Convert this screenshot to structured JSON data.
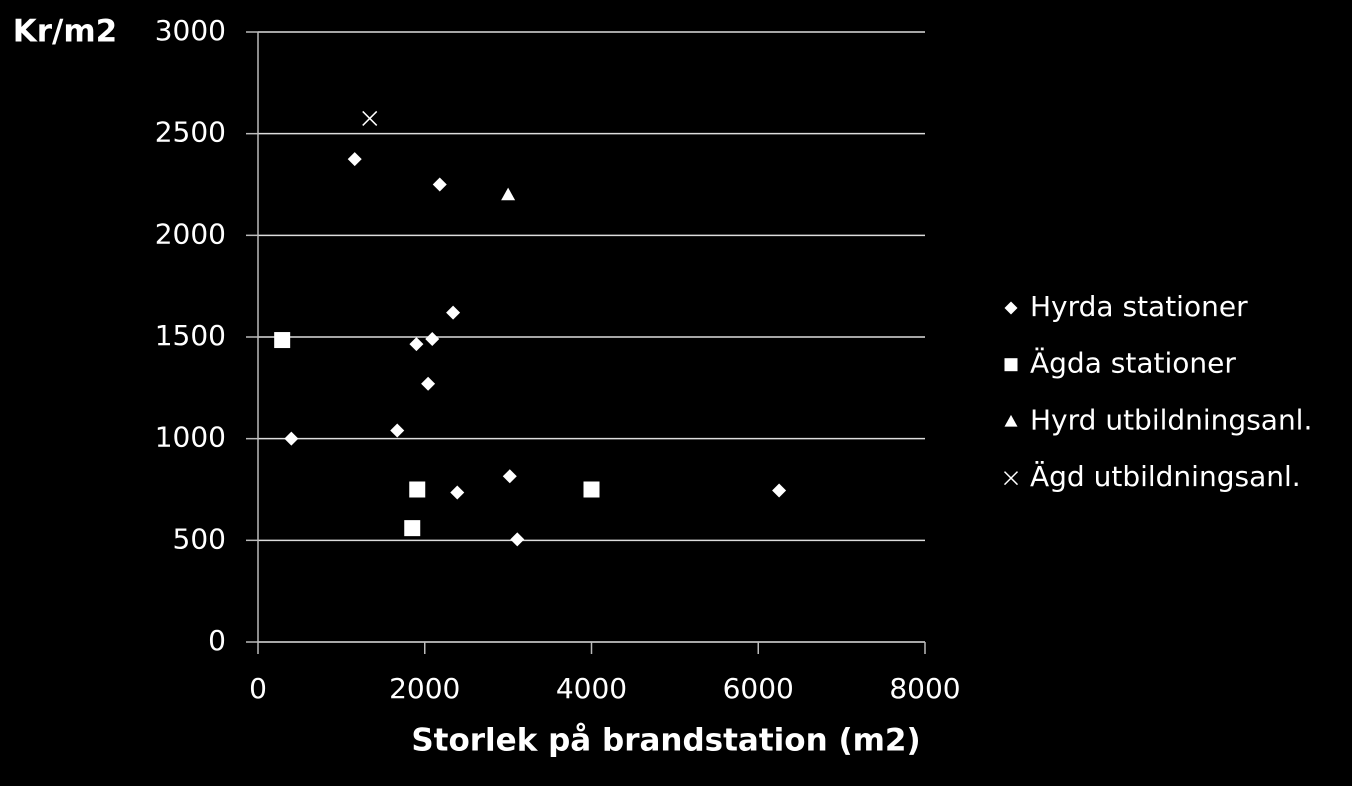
{
  "chart_data": {
    "type": "scatter",
    "ylabel": "Kr/m2",
    "xlabel": "Storlek på brandstation (m2)",
    "xlim": [
      0,
      8000
    ],
    "xticks": [
      0,
      2000,
      4000,
      6000,
      8000
    ],
    "ylim": [
      0,
      3000
    ],
    "yticks": [
      0,
      500,
      1000,
      1500,
      2000,
      2500,
      3000
    ],
    "grid": true,
    "legend": "right",
    "series": [
      {
        "name": "Hyrda stationer",
        "color": "#ffffff",
        "marker": "diamond",
        "x": [
          1160,
          2180,
          2340,
          2090,
          1900,
          2040,
          1670,
          400,
          3020,
          2390,
          6250,
          3110
        ],
        "values": [
          2375,
          2250,
          1620,
          1490,
          1465,
          1270,
          1040,
          1000,
          815,
          735,
          745,
          505
        ]
      },
      {
        "name": "Ägda stationer",
        "color": "#ffffff",
        "marker": "square",
        "x": [
          290,
          1910,
          4000,
          1850
        ],
        "values": [
          1485,
          750,
          750,
          560
        ]
      },
      {
        "name": "Hyrd utbildningsanl.",
        "color": "#ffffff",
        "marker": "triangle",
        "x": [
          3000
        ],
        "values": [
          2200
        ]
      },
      {
        "name": "Ägd utbildningsanl.",
        "color": "#ffffff",
        "marker": "cross",
        "x": [
          1340
        ],
        "values": [
          2575
        ]
      }
    ]
  }
}
